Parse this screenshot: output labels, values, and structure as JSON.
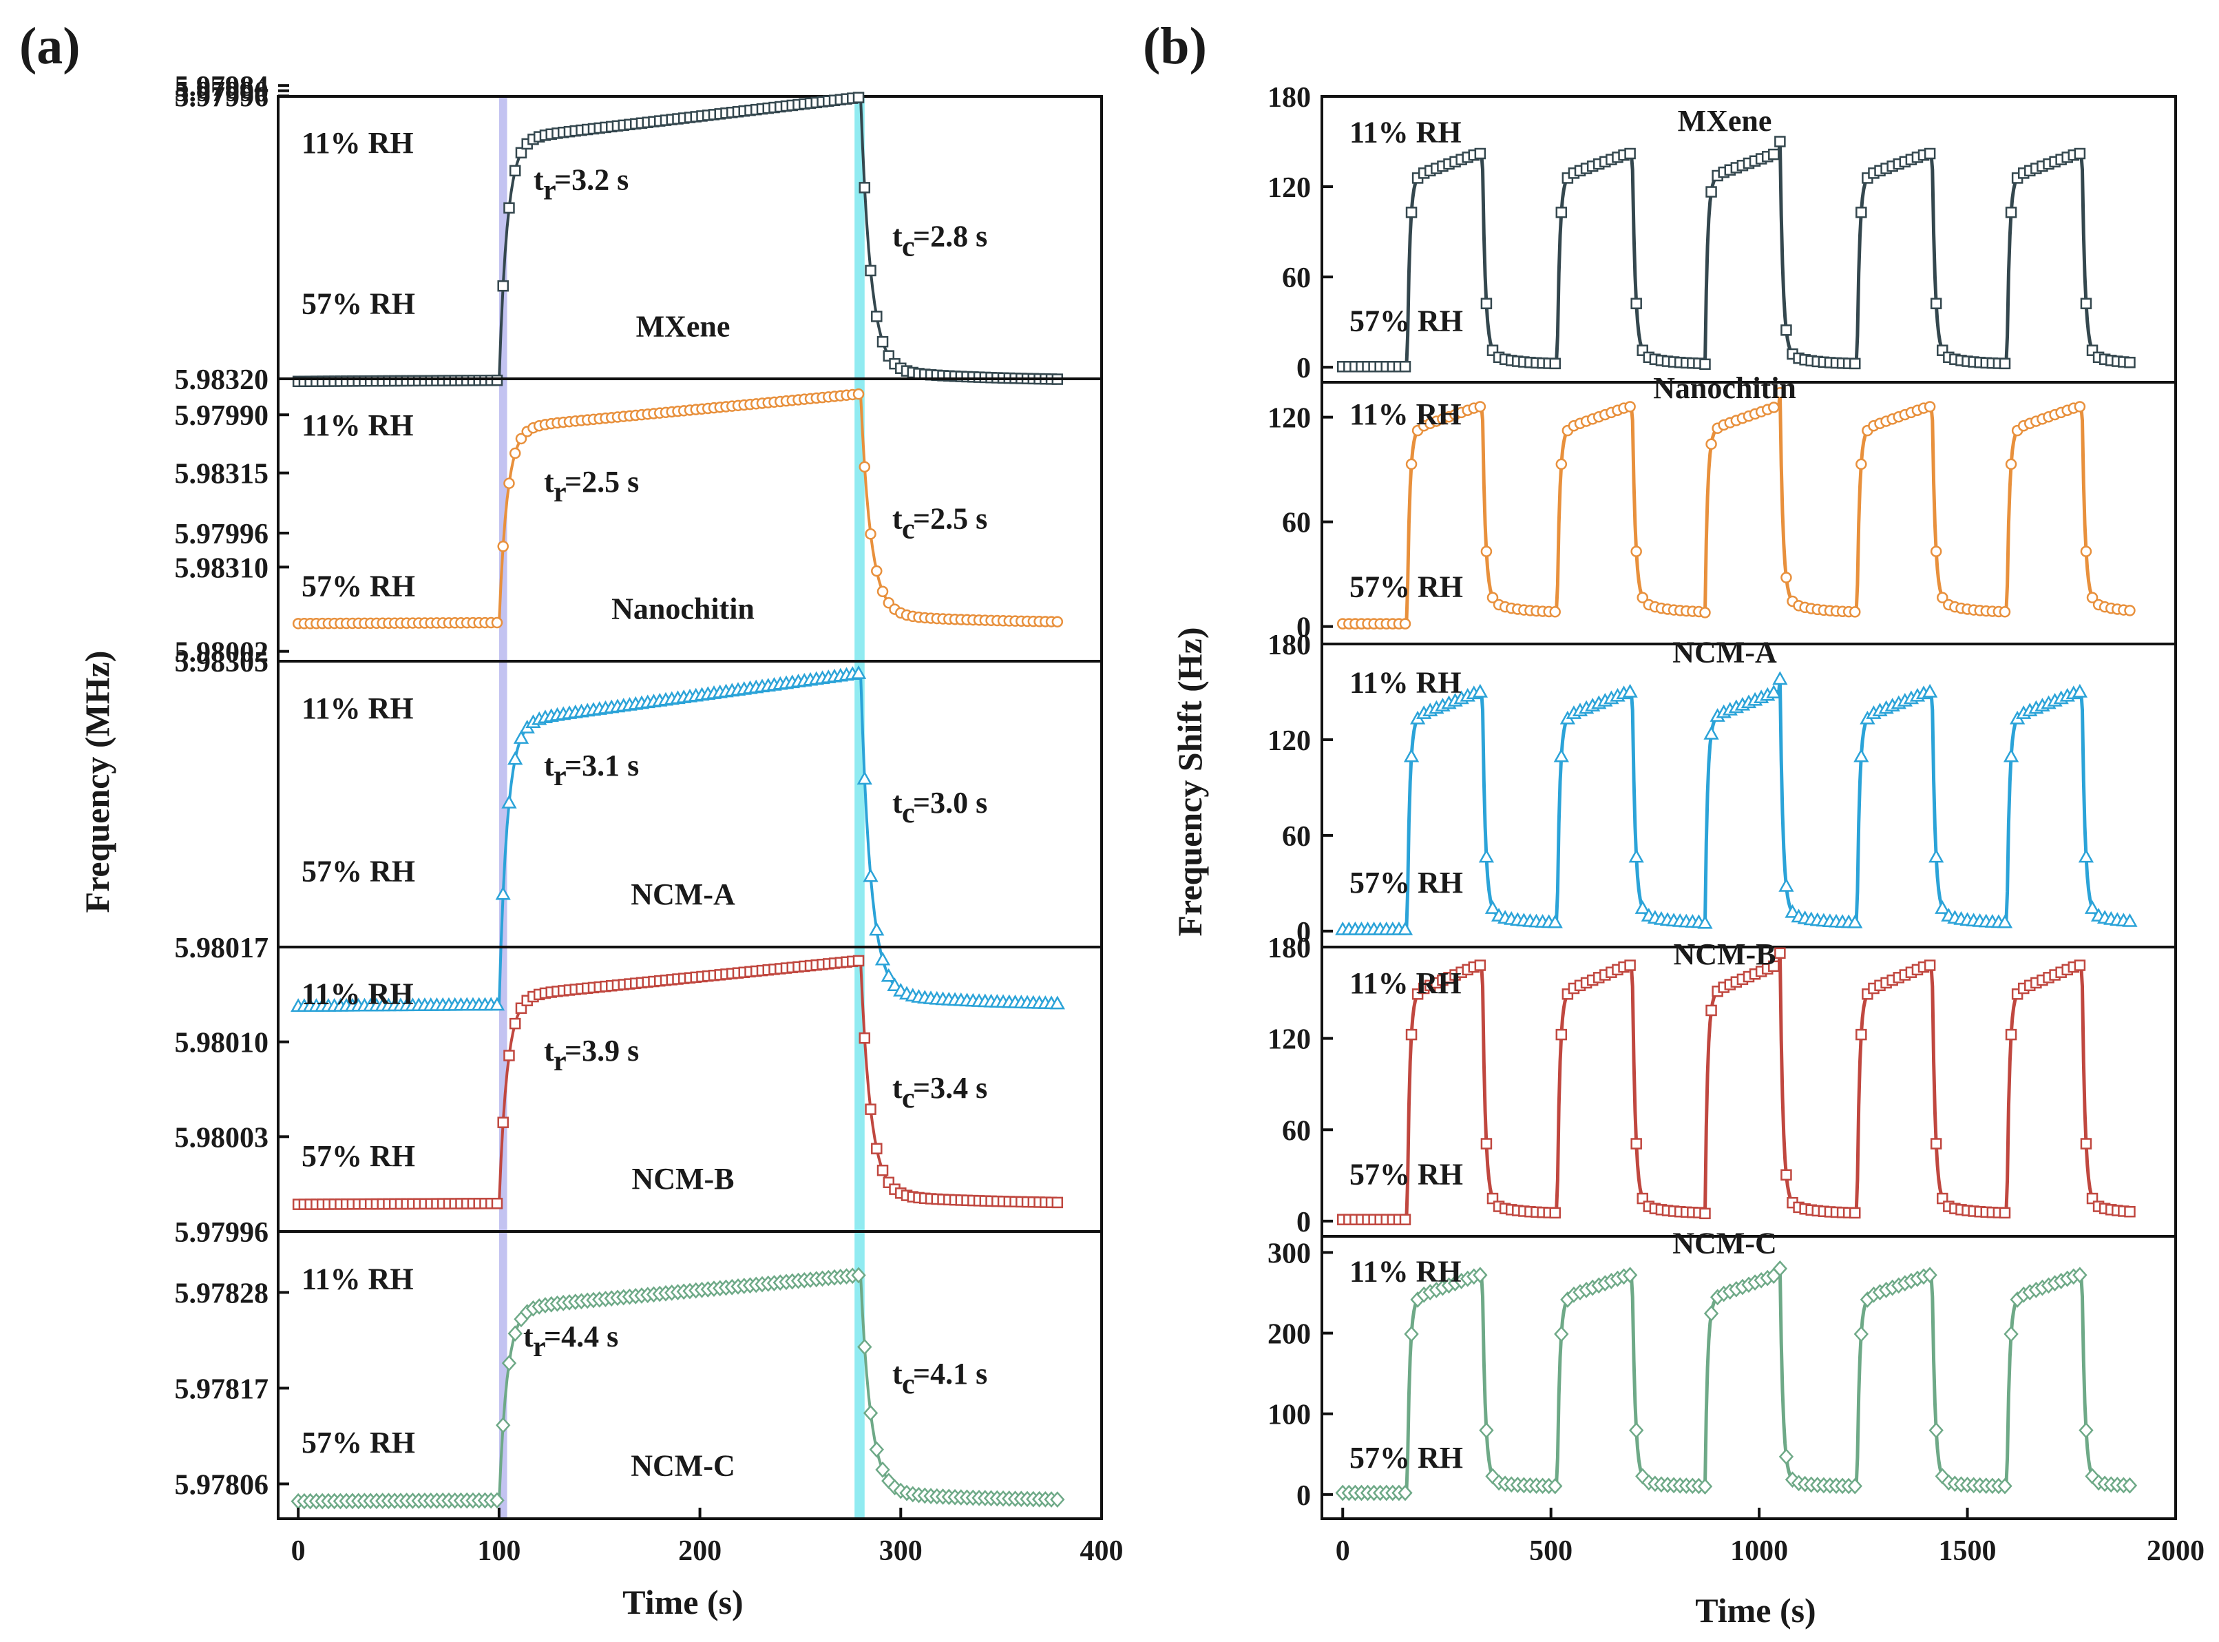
{
  "panel_labels": {
    "a": "(a)",
    "b": "(b)"
  },
  "chart_data": [
    {
      "id": "a",
      "type": "line",
      "panel_label": "(a)",
      "xlabel": "Time (s)",
      "ylabel": "Frequency (MHz)",
      "xlim": [
        -10,
        400
      ],
      "xticks": [
        0,
        100,
        200,
        300,
        400
      ],
      "x_tick_labels": [
        "0",
        "100",
        "200",
        "300",
        "400"
      ],
      "shaded_bands": [
        {
          "x0": 100,
          "x1": 104,
          "color": "#b8b8ee"
        },
        {
          "x0": 277,
          "x1": 282,
          "color": "#7ee8ee"
        }
      ],
      "subplots": [
        {
          "name": "MXene",
          "color": "#34474e",
          "marker": "square",
          "ylim": [
            5.9832,
            5.979965
          ],
          "yticks": [
            5.9832,
            5.97984,
            5.9799,
            5.97996
          ],
          "y_tick_labels": [
            "5.98320",
            "5.97984",
            "5.97990",
            "5.97996"
          ],
          "series_low_57RH": 5.98323,
          "series_high_11RH": 5.979975,
          "annotations": {
            "high_rh": "11% RH",
            "low_rh": "57% RH",
            "tr_label": "t",
            "tr_sub": "r",
            "tr_value": "=3.2 s",
            "tc_label": "t",
            "tc_sub": "c",
            "tc_value": "=2.8 s"
          }
        },
        {
          "name": "Nanochitin",
          "color": "#e8903c",
          "marker": "circle",
          "ylim": [
            5.98305,
            5.9832
          ],
          "yticks": [
            5.98305,
            5.9831,
            5.98315
          ],
          "y_tick_labels": [
            "5.98305",
            "5.98310",
            "5.98315"
          ],
          "series_low_57RH": 5.98307,
          "series_high_11RH": 5.983192,
          "annotations": {
            "high_rh": "11% RH",
            "low_rh": "57% RH",
            "tr_label": "t",
            "tr_sub": "r",
            "tr_value": "=2.5 s",
            "tc_label": "t",
            "tc_sub": "c",
            "tc_value": "=2.5 s"
          }
        },
        {
          "name": "NCM-A",
          "color": "#2ba3d8",
          "marker": "triangle",
          "ylim": [
            5.98017,
            5.980025
          ],
          "yticks": [
            5.9799,
            5.97996,
            5.98002
          ],
          "y_tick_labels": [
            "5.97990",
            "5.97996",
            "5.98002"
          ],
          "series_low_57RH": 5.9802,
          "series_high_11RH": 5.980031,
          "annotations": {
            "high_rh": "11% RH",
            "low_rh": "57% RH",
            "tr_label": "t",
            "tr_sub": "r",
            "tr_value": "=3.1 s",
            "tc_label": "t",
            "tc_sub": "c",
            "tc_value": "=3.0 s"
          }
        },
        {
          "name": "NCM-B",
          "color": "#c0473f",
          "marker": "square",
          "ylim": [
            5.97996,
            5.98017
          ],
          "yticks": [
            5.97996,
            5.98003,
            5.9801,
            5.98017
          ],
          "y_tick_labels": [
            "5.97996",
            "5.98003",
            "5.98010",
            "5.98017"
          ],
          "series_low_57RH": 5.97998,
          "series_high_11RH": 5.98016,
          "annotations": {
            "high_rh": "11% RH",
            "low_rh": "57% RH",
            "tr_label": "t",
            "tr_sub": "r",
            "tr_value": "=3.9 s",
            "tc_label": "t",
            "tc_sub": "c",
            "tc_value": "=3.4 s"
          }
        },
        {
          "name": "NCM-C",
          "color": "#6ea987",
          "marker": "diamond",
          "ylim": [
            5.97802,
            5.97835
          ],
          "yticks": [
            5.97806,
            5.97817,
            5.97828
          ],
          "y_tick_labels": [
            "5.97806",
            "5.97817",
            "5.97828"
          ],
          "series_low_57RH": 5.97804,
          "series_high_11RH": 5.9783,
          "annotations": {
            "high_rh": "11% RH",
            "low_rh": "57% RH",
            "tr_label": "t",
            "tr_sub": "r",
            "tr_value": "=4.4 s",
            "tc_label": "t",
            "tc_sub": "c",
            "tc_value": "=4.1 s"
          }
        }
      ]
    },
    {
      "id": "b",
      "type": "line",
      "panel_label": "(b)",
      "xlabel": "Time (s)",
      "ylabel": "Frequency Shift (Hz)",
      "xlim": [
        -50,
        2000
      ],
      "xticks": [
        0,
        500,
        1000,
        1500,
        2000
      ],
      "x_tick_labels": [
        "0",
        "500",
        "1000",
        "1500",
        "2000"
      ],
      "cycles": 5,
      "cycle_rise_times_s": [
        155,
        515,
        870,
        1235,
        1595
      ],
      "cycle_fall_times_s": [
        335,
        695,
        1050,
        1415,
        1775
      ],
      "end_time_s": 1900,
      "subplots": [
        {
          "name": "MXene",
          "color": "#34474e",
          "marker": "square",
          "ylim": [
            -10,
            180
          ],
          "yticks": [
            0,
            60,
            120,
            180
          ],
          "y_tick_labels": [
            "0",
            "60",
            "120",
            "180"
          ],
          "plateau_high_hz": 142,
          "baseline_low_hz": 2,
          "annotations": {
            "high_rh": "11% RH",
            "low_rh": "57% RH"
          }
        },
        {
          "name": "Nanochitin",
          "color": "#e8903c",
          "marker": "circle",
          "ylim": [
            -10,
            140
          ],
          "yticks": [
            0,
            60,
            120
          ],
          "y_tick_labels": [
            "0",
            "60",
            "120"
          ],
          "plateau_high_hz": 126,
          "baseline_low_hz": 8,
          "annotations": {
            "high_rh": "11% RH",
            "low_rh": "57% RH"
          }
        },
        {
          "name": "NCM-A",
          "color": "#2ba3d8",
          "marker": "triangle",
          "ylim": [
            -10,
            180
          ],
          "yticks": [
            0,
            60,
            120,
            180
          ],
          "y_tick_labels": [
            "0",
            "60",
            "120",
            "180"
          ],
          "plateau_high_hz": 150,
          "baseline_low_hz": 5,
          "annotations": {
            "high_rh": "11% RH",
            "low_rh": "57% RH"
          }
        },
        {
          "name": "NCM-B",
          "color": "#c0473f",
          "marker": "square",
          "ylim": [
            -10,
            180
          ],
          "yticks": [
            0,
            60,
            120,
            180
          ],
          "y_tick_labels": [
            "0",
            "60",
            "120",
            "180"
          ],
          "plateau_high_hz": 168,
          "baseline_low_hz": 5,
          "annotations": {
            "high_rh": "11% RH",
            "low_rh": "57% RH"
          }
        },
        {
          "name": "NCM-C",
          "color": "#6ea987",
          "marker": "diamond",
          "ylim": [
            -30,
            320
          ],
          "yticks": [
            0,
            100,
            200,
            300
          ],
          "y_tick_labels": [
            "0",
            "100",
            "200",
            "300"
          ],
          "plateau_high_hz": 272,
          "baseline_low_hz": 10,
          "annotations": {
            "high_rh": "11% RH",
            "low_rh": "57% RH"
          }
        }
      ]
    }
  ]
}
